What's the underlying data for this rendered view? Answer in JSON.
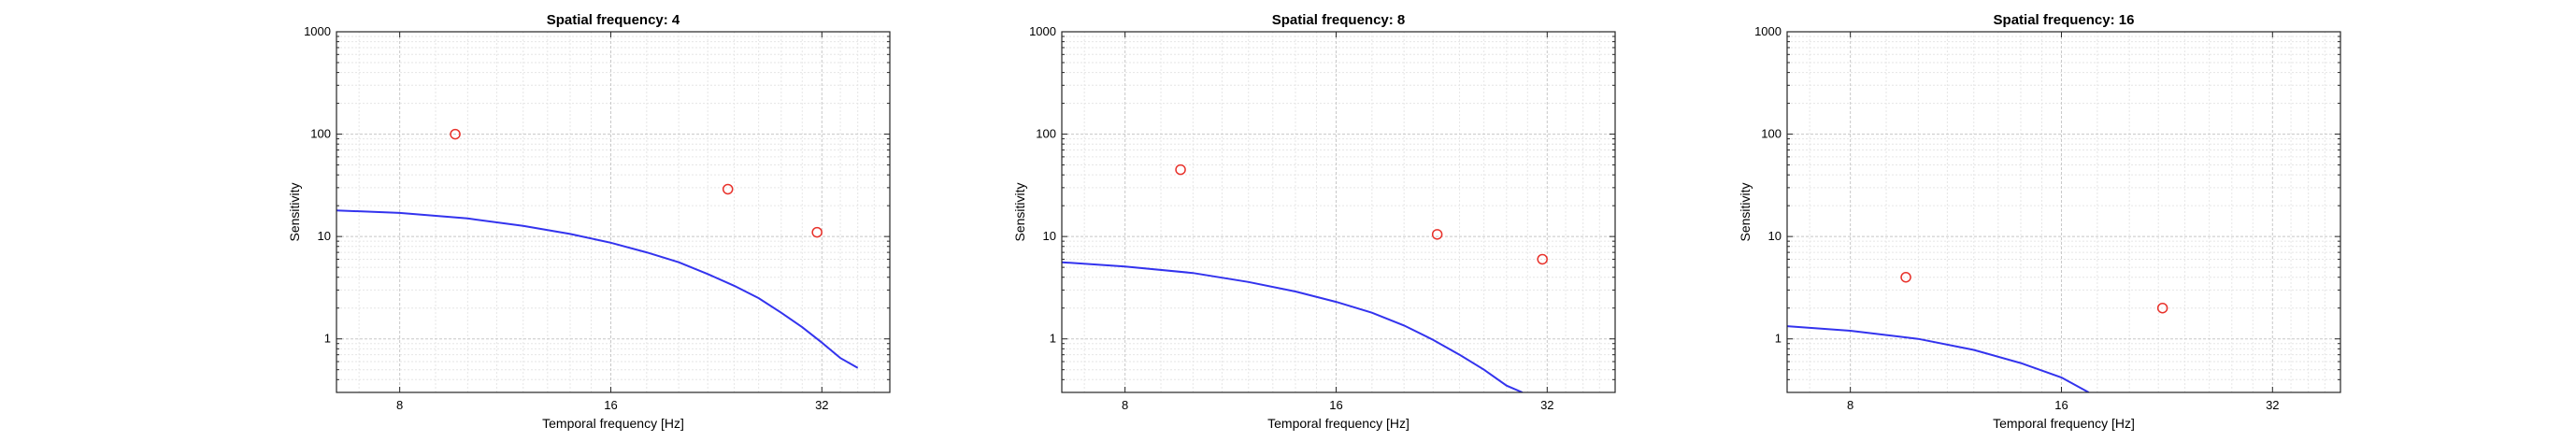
{
  "chart_data": [
    {
      "type": "line",
      "title": "Spatial frequency: 4",
      "xlabel": "Temporal frequency [Hz]",
      "ylabel": "Sensitivity",
      "xscale": "log2",
      "yscale": "log10",
      "xlim": [
        6.5,
        40
      ],
      "ylim": [
        0.3,
        1000
      ],
      "xticks": [
        8,
        16,
        32
      ],
      "xtick_labels": [
        "8",
        "16",
        "32"
      ],
      "yticks": [
        1,
        10,
        100,
        1000
      ],
      "ytick_labels": [
        "1",
        "10",
        "100",
        "1000"
      ],
      "grid": true,
      "colors": {
        "curve": "#3333ee",
        "points": "#e8312a"
      },
      "series": [
        {
          "kind": "line",
          "x": [
            6.5,
            8,
            10,
            12,
            14,
            16,
            18,
            20,
            22,
            24,
            26,
            28,
            30,
            32,
            34,
            36
          ],
          "y": [
            18,
            17,
            15,
            12.7,
            10.6,
            8.7,
            7.0,
            5.6,
            4.3,
            3.3,
            2.5,
            1.8,
            1.3,
            0.92,
            0.65,
            0.52
          ]
        },
        {
          "kind": "scatter",
          "x": [
            9.6,
            23.5,
            31.5
          ],
          "y": [
            100,
            29,
            11
          ]
        }
      ]
    },
    {
      "type": "line",
      "title": "Spatial frequency: 8",
      "xlabel": "Temporal frequency [Hz]",
      "ylabel": "Sensitivity",
      "xscale": "log2",
      "yscale": "log10",
      "xlim": [
        6.5,
        40
      ],
      "ylim": [
        0.3,
        1000
      ],
      "xticks": [
        8,
        16,
        32
      ],
      "xtick_labels": [
        "8",
        "16",
        "32"
      ],
      "yticks": [
        1,
        10,
        100,
        1000
      ],
      "ytick_labels": [
        "1",
        "10",
        "100",
        "1000"
      ],
      "grid": true,
      "colors": {
        "curve": "#3333ee",
        "points": "#e8312a"
      },
      "series": [
        {
          "kind": "line",
          "x": [
            6.5,
            8,
            10,
            12,
            14,
            16,
            18,
            20,
            22,
            24,
            26,
            28,
            29.5
          ],
          "y": [
            5.6,
            5.1,
            4.4,
            3.6,
            2.9,
            2.3,
            1.8,
            1.35,
            0.98,
            0.7,
            0.5,
            0.35,
            0.3
          ]
        },
        {
          "kind": "scatter",
          "x": [
            9.6,
            22.3,
            31.5
          ],
          "y": [
            45,
            10.5,
            6
          ]
        }
      ]
    },
    {
      "type": "line",
      "title": "Spatial frequency: 16",
      "xlabel": "Temporal frequency [Hz]",
      "ylabel": "Sensitivity",
      "xscale": "log2",
      "yscale": "log10",
      "xlim": [
        6.5,
        40
      ],
      "ylim": [
        0.3,
        1000
      ],
      "xticks": [
        8,
        16,
        32
      ],
      "xtick_labels": [
        "8",
        "16",
        "32"
      ],
      "yticks": [
        1,
        10,
        100,
        1000
      ],
      "ytick_labels": [
        "1",
        "10",
        "100",
        "1000"
      ],
      "grid": true,
      "colors": {
        "curve": "#3333ee",
        "points": "#e8312a"
      },
      "series": [
        {
          "kind": "line",
          "x": [
            6.5,
            8,
            10,
            12,
            14,
            16,
            17.5
          ],
          "y": [
            1.33,
            1.2,
            1.0,
            0.78,
            0.58,
            0.42,
            0.3
          ]
        },
        {
          "kind": "scatter",
          "x": [
            9.6,
            22.3
          ],
          "y": [
            4,
            2
          ]
        }
      ]
    }
  ]
}
